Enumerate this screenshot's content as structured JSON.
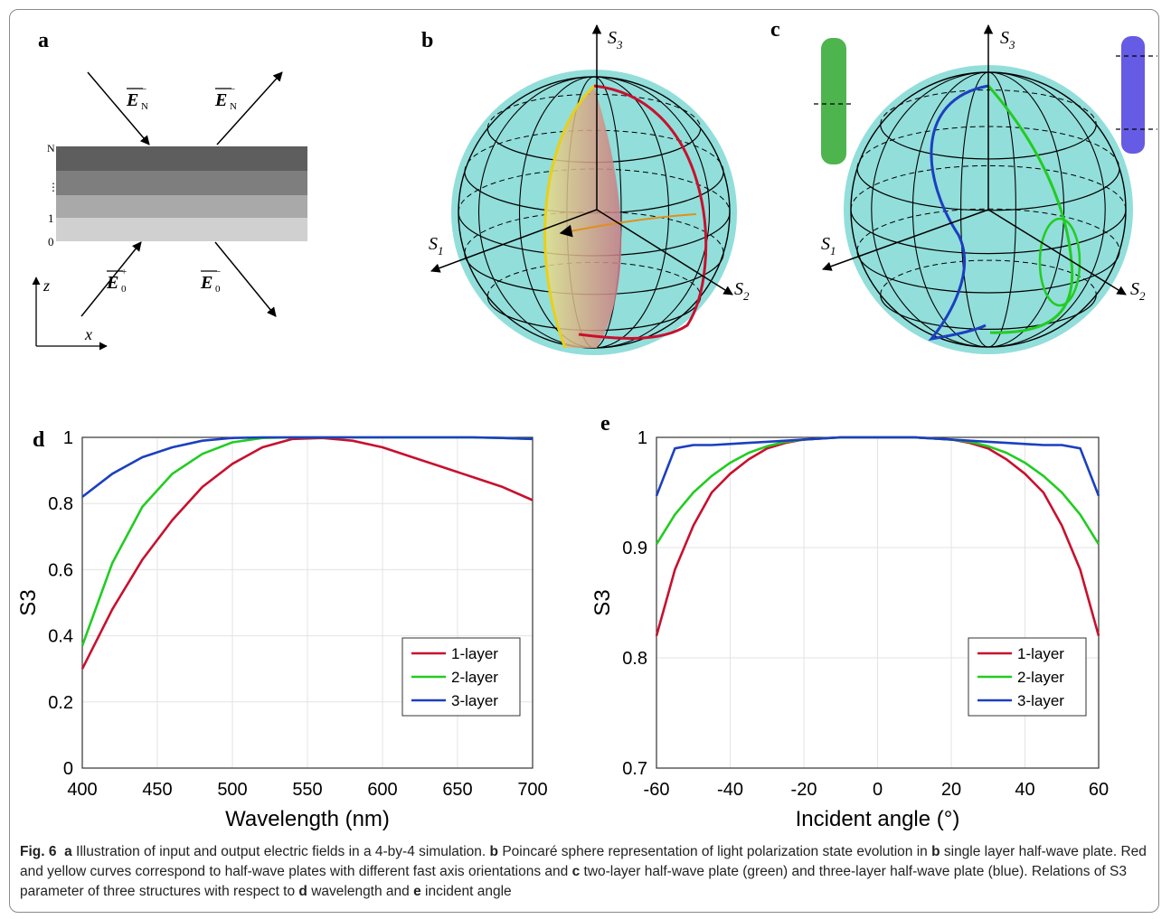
{
  "panels": {
    "a": {
      "letter": "a",
      "layer_labels": [
        "N",
        "⋮",
        "1",
        "0"
      ],
      "field_labels": {
        "EN_minus_in": "E",
        "EN_minus_out": "E",
        "E0_plus": "E",
        "E0_minus": "E",
        "sub_N": "N",
        "sub_0": "0",
        "sup_minus": "−",
        "sup_plus": "+"
      },
      "axes": {
        "z": "z",
        "x": "x"
      }
    },
    "b": {
      "letter": "b",
      "axis_labels": {
        "s3": "S",
        "s3_sub": "3",
        "s1": "S",
        "s1_sub": "1",
        "s2": "S",
        "s2_sub": "2"
      }
    },
    "c": {
      "letter": "c",
      "axis_labels": {
        "s3": "S",
        "s3_sub": "3",
        "s1": "S",
        "s1_sub": "1",
        "s2": "S",
        "s2_sub": "2"
      }
    },
    "d": {
      "letter": "d"
    },
    "e": {
      "letter": "e"
    }
  },
  "colors": {
    "red": "#c8102e",
    "green": "#22cc22",
    "blue": "#1c3fc0",
    "yellow": "#e8d01a",
    "sphere": "#7fd8d3",
    "grid": "#e3e3e3"
  },
  "chart_data": [
    {
      "type": "line",
      "panel": "d",
      "xlabel": "Wavelength (nm)",
      "ylabel": "S3",
      "xlim": [
        400,
        700
      ],
      "ylim": [
        0,
        1
      ],
      "xticks": [
        400,
        450,
        500,
        550,
        600,
        650,
        700
      ],
      "yticks": [
        0,
        0.2,
        0.4,
        0.6,
        0.8,
        1
      ],
      "ytick_labels": [
        "0",
        "0.2",
        "0.4",
        "0.6",
        "0.8",
        "1"
      ],
      "grid": true,
      "legend_position": "bottom-right",
      "x": [
        400,
        420,
        440,
        460,
        480,
        500,
        520,
        540,
        560,
        580,
        600,
        620,
        640,
        660,
        680,
        700
      ],
      "series": [
        {
          "name": "1-layer",
          "color": "#c8102e",
          "values": [
            0.3,
            0.48,
            0.63,
            0.75,
            0.85,
            0.92,
            0.97,
            0.995,
            0.998,
            0.99,
            0.97,
            0.94,
            0.91,
            0.88,
            0.85,
            0.81
          ]
        },
        {
          "name": "2-layer",
          "color": "#22cc22",
          "values": [
            0.37,
            0.62,
            0.79,
            0.89,
            0.95,
            0.985,
            0.998,
            1.0,
            1.0,
            1.0,
            1.0,
            1.0,
            1.0,
            1.0,
            0.998,
            0.995
          ]
        },
        {
          "name": "3-layer",
          "color": "#1c3fc0",
          "values": [
            0.82,
            0.89,
            0.94,
            0.97,
            0.99,
            0.998,
            1.0,
            1.0,
            1.0,
            1.0,
            1.0,
            1.0,
            1.0,
            1.0,
            0.998,
            0.995
          ]
        }
      ]
    },
    {
      "type": "line",
      "panel": "e",
      "xlabel": "Incident angle (°)",
      "ylabel": "S3",
      "xlim": [
        -60,
        60
      ],
      "ylim": [
        0.7,
        1
      ],
      "xticks": [
        -60,
        -40,
        -20,
        0,
        20,
        40,
        60
      ],
      "yticks": [
        0.7,
        0.8,
        0.9,
        1
      ],
      "ytick_labels": [
        "0.7",
        "0.8",
        "0.9",
        "1"
      ],
      "grid": true,
      "legend_position": "bottom-right",
      "x": [
        -60,
        -55,
        -50,
        -45,
        -40,
        -35,
        -30,
        -25,
        -20,
        -15,
        -10,
        -5,
        0,
        5,
        10,
        15,
        20,
        25,
        30,
        35,
        40,
        45,
        50,
        55,
        60
      ],
      "series": [
        {
          "name": "1-layer",
          "color": "#c8102e",
          "values": [
            0.82,
            0.88,
            0.92,
            0.95,
            0.967,
            0.98,
            0.99,
            0.995,
            0.998,
            0.999,
            1.0,
            1.0,
            1.0,
            1.0,
            1.0,
            0.999,
            0.998,
            0.995,
            0.99,
            0.98,
            0.967,
            0.95,
            0.92,
            0.88,
            0.82
          ]
        },
        {
          "name": "2-layer",
          "color": "#22cc22",
          "values": [
            0.903,
            0.93,
            0.95,
            0.965,
            0.977,
            0.986,
            0.992,
            0.996,
            0.998,
            0.999,
            1.0,
            1.0,
            1.0,
            1.0,
            1.0,
            0.999,
            0.998,
            0.996,
            0.992,
            0.986,
            0.977,
            0.965,
            0.95,
            0.93,
            0.903
          ]
        },
        {
          "name": "3-layer",
          "color": "#1c3fc0",
          "values": [
            0.947,
            0.99,
            0.993,
            0.993,
            0.994,
            0.995,
            0.996,
            0.997,
            0.998,
            0.999,
            1.0,
            1.0,
            1.0,
            1.0,
            1.0,
            0.999,
            0.998,
            0.997,
            0.996,
            0.995,
            0.994,
            0.993,
            0.993,
            0.99,
            0.947
          ]
        }
      ]
    }
  ],
  "caption": {
    "fig_label": "Fig. 6",
    "seg1_a": "a",
    "seg1": " Illustration of input and output electric fields in a 4-by-4 simulation. ",
    "seg2_b": "b",
    "seg2": " Poincaré sphere representation of light polarization state evolution in ",
    "seg3_b": "b",
    "seg3": " single layer half-wave plate. Red and yellow curves correspond to half-wave plates with different fast axis orientations and ",
    "seg4_c": "c",
    "seg4": " two-layer half-wave plate (green) and three-layer half-wave plate (blue). Relations of S3 parameter of three structures with respect to ",
    "seg5_d": "d",
    "seg5": " wavelength and ",
    "seg6_e": "e",
    "seg6": " incident angle"
  }
}
